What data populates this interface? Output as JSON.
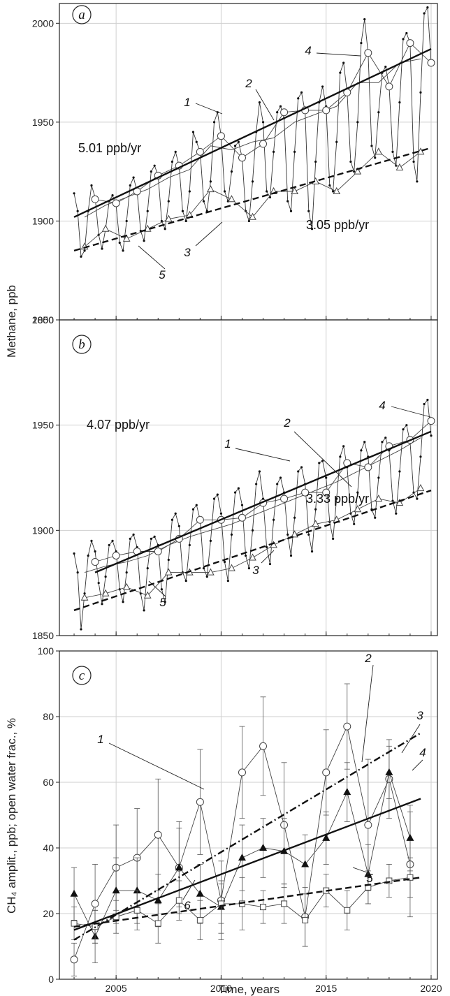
{
  "figure": {
    "ylabel_top": "Methane, ppb",
    "ylabel_c": "CH₄ amplit., ppb; open water frac., %",
    "xlabel": "Time, years",
    "x_ticks": [
      "2005",
      "2010",
      "2015",
      "2020"
    ]
  },
  "chart_data": [
    {
      "panel": "a",
      "type": "line",
      "xlim": [
        2002.3,
        2020.3
      ],
      "ylim": [
        1850,
        2010
      ],
      "y_ticks": [
        "1850",
        "1900",
        "1950",
        "2000"
      ],
      "grid": true,
      "annotations": {
        "rate_upper": "5.01 ppb/yr",
        "rate_lower": "3.05 ppb/yr",
        "labels": [
          "1",
          "2",
          "3",
          "4",
          "5"
        ]
      },
      "series": [
        {
          "key": "monthly",
          "x": [
            2003.0,
            2003.17,
            2003.33,
            2003.5,
            2003.67,
            2003.83,
            2004.0,
            2004.17,
            2004.33,
            2004.5,
            2004.67,
            2004.83,
            2005.0,
            2005.17,
            2005.33,
            2005.5,
            2005.67,
            2005.83,
            2006.0,
            2006.17,
            2006.33,
            2006.5,
            2006.67,
            2006.83,
            2007.0,
            2007.17,
            2007.33,
            2007.5,
            2007.67,
            2007.83,
            2008.0,
            2008.17,
            2008.33,
            2008.5,
            2008.67,
            2008.83,
            2009.0,
            2009.17,
            2009.33,
            2009.5,
            2009.67,
            2009.83,
            2010.0,
            2010.17,
            2010.33,
            2010.5,
            2010.67,
            2010.83,
            2011.0,
            2011.17,
            2011.33,
            2011.5,
            2011.67,
            2011.83,
            2012.0,
            2012.17,
            2012.33,
            2012.5,
            2012.67,
            2012.83,
            2013.0,
            2013.17,
            2013.33,
            2013.5,
            2013.67,
            2013.83,
            2014.0,
            2014.17,
            2014.33,
            2014.5,
            2014.67,
            2014.83,
            2015.0,
            2015.17,
            2015.33,
            2015.5,
            2015.67,
            2015.83,
            2016.0,
            2016.17,
            2016.33,
            2016.5,
            2016.67,
            2016.83,
            2017.0,
            2017.17,
            2017.33,
            2017.5,
            2017.67,
            2017.83,
            2018.0,
            2018.17,
            2018.33,
            2018.5,
            2018.67,
            2018.83,
            2019.0,
            2019.17,
            2019.33,
            2019.5,
            2019.67,
            2019.83,
            2020.0
          ],
          "y": [
            1914,
            1905,
            1882,
            1885,
            1905,
            1918,
            1912,
            1893,
            1886,
            1896,
            1910,
            1913,
            1908,
            1889,
            1885,
            1900,
            1918,
            1922,
            1915,
            1895,
            1890,
            1905,
            1925,
            1928,
            1923,
            1900,
            1896,
            1910,
            1930,
            1935,
            1928,
            1905,
            1900,
            1915,
            1945,
            1940,
            1935,
            1910,
            1905,
            1920,
            1950,
            1955,
            1943,
            1915,
            1910,
            1925,
            1938,
            1940,
            1932,
            1905,
            1900,
            1920,
            1945,
            1960,
            1950,
            1915,
            1912,
            1935,
            1955,
            1958,
            1952,
            1910,
            1905,
            1935,
            1962,
            1965,
            1955,
            1905,
            1896,
            1930,
            1960,
            1968,
            1958,
            1918,
            1915,
            1940,
            1975,
            1980,
            1965,
            1930,
            1925,
            1950,
            1990,
            2002,
            1985,
            1938,
            1932,
            1955,
            1975,
            1978,
            1968,
            1935,
            1928,
            1960,
            1992,
            1995,
            1990,
            1930,
            1920,
            1965,
            2005,
            2008,
            1980
          ]
        },
        {
          "key": "1",
          "marker": "none",
          "x": [
            2003.5,
            2004.5,
            2005.5,
            2006.5,
            2007.5,
            2008.5,
            2009.5,
            2010.5,
            2011.5,
            2012.5,
            2013.5,
            2014.5,
            2015.5,
            2016.5,
            2017.5,
            2018.5,
            2019.5
          ],
          "y": [
            1902,
            1908,
            1912,
            1916,
            1922,
            1926,
            1938,
            1936,
            1940,
            1942,
            1950,
            1954,
            1958,
            1970,
            1970,
            1980,
            1982
          ]
        },
        {
          "key": "4",
          "marker": "circle",
          "x": [
            2004,
            2005,
            2006,
            2007,
            2008,
            2009,
            2010,
            2011,
            2012,
            2013,
            2014,
            2015,
            2016,
            2017,
            2018,
            2019,
            2020
          ],
          "y": [
            1911,
            1909,
            1915,
            1923,
            1928,
            1935,
            1943,
            1932,
            1939,
            1955,
            1956,
            1956,
            1965,
            1985,
            1968,
            1990,
            1980
          ]
        },
        {
          "key": "5",
          "marker": "triangle",
          "x": [
            2003.5,
            2004.5,
            2005.5,
            2006.5,
            2007.5,
            2008.5,
            2009.5,
            2010.5,
            2011.5,
            2012.5,
            2013.5,
            2014.5,
            2015.5,
            2016.5,
            2017.5,
            2018.5,
            2019.5
          ],
          "y": [
            1887,
            1896,
            1891,
            1896,
            1901,
            1903,
            1916,
            1911,
            1902,
            1915,
            1915,
            1920,
            1915,
            1925,
            1935,
            1927,
            1935
          ]
        },
        {
          "key": "2",
          "style": "solid-thick",
          "x": [
            2003,
            2020
          ],
          "y": [
            1902,
            1987
          ]
        },
        {
          "key": "3",
          "style": "dashed-thick",
          "x": [
            2003,
            2020
          ],
          "y": [
            1885,
            1937
          ]
        }
      ]
    },
    {
      "panel": "b",
      "type": "line",
      "xlim": [
        2002.3,
        2020.3
      ],
      "ylim": [
        1850,
        2000
      ],
      "y_ticks": [
        "1850",
        "1900",
        "1950",
        "2000"
      ],
      "grid": true,
      "annotations": {
        "rate_upper": "4.07 ppb/yr",
        "rate_lower": "3.33 ppb/yr",
        "labels": [
          "1",
          "2",
          "3",
          "4",
          "5"
        ]
      },
      "series": [
        {
          "key": "monthly",
          "x": [
            2003.0,
            2003.17,
            2003.33,
            2003.5,
            2003.67,
            2003.83,
            2004.0,
            2004.17,
            2004.33,
            2004.5,
            2004.67,
            2004.83,
            2005.0,
            2005.17,
            2005.33,
            2005.5,
            2005.67,
            2005.83,
            2006.0,
            2006.17,
            2006.33,
            2006.5,
            2006.67,
            2006.83,
            2007.0,
            2007.17,
            2007.33,
            2007.5,
            2007.67,
            2007.83,
            2008.0,
            2008.17,
            2008.33,
            2008.5,
            2008.67,
            2008.83,
            2009.0,
            2009.17,
            2009.33,
            2009.5,
            2009.67,
            2009.83,
            2010.0,
            2010.17,
            2010.33,
            2010.5,
            2010.67,
            2010.83,
            2011.0,
            2011.17,
            2011.33,
            2011.5,
            2011.67,
            2011.83,
            2012.0,
            2012.17,
            2012.33,
            2012.5,
            2012.67,
            2012.83,
            2013.0,
            2013.17,
            2013.33,
            2013.5,
            2013.67,
            2013.83,
            2014.0,
            2014.17,
            2014.33,
            2014.5,
            2014.67,
            2014.83,
            2015.0,
            2015.17,
            2015.33,
            2015.5,
            2015.67,
            2015.83,
            2016.0,
            2016.17,
            2016.33,
            2016.5,
            2016.67,
            2016.83,
            2017.0,
            2017.17,
            2017.33,
            2017.5,
            2017.67,
            2017.83,
            2018.0,
            2018.17,
            2018.33,
            2018.5,
            2018.67,
            2018.83,
            2019.0,
            2019.17,
            2019.33,
            2019.5,
            2019.67,
            2019.83,
            2020.0
          ],
          "y": [
            1889,
            1880,
            1853,
            1870,
            1888,
            1895,
            1890,
            1875,
            1865,
            1878,
            1893,
            1895,
            1890,
            1872,
            1866,
            1880,
            1896,
            1898,
            1892,
            1870,
            1862,
            1882,
            1896,
            1897,
            1893,
            1872,
            1866,
            1886,
            1905,
            1908,
            1902,
            1880,
            1876,
            1893,
            1910,
            1912,
            1905,
            1882,
            1878,
            1895,
            1915,
            1917,
            1908,
            1885,
            1876,
            1898,
            1918,
            1920,
            1912,
            1888,
            1882,
            1900,
            1922,
            1928,
            1915,
            1892,
            1884,
            1905,
            1922,
            1925,
            1918,
            1898,
            1888,
            1906,
            1928,
            1930,
            1922,
            1898,
            1890,
            1910,
            1932,
            1933,
            1925,
            1904,
            1896,
            1915,
            1935,
            1940,
            1930,
            1908,
            1903,
            1918,
            1938,
            1942,
            1935,
            1910,
            1906,
            1925,
            1942,
            1944,
            1938,
            1914,
            1908,
            1928,
            1948,
            1950,
            1942,
            1918,
            1915,
            1935,
            1960,
            1962,
            1945
          ]
        },
        {
          "key": "1",
          "marker": "none",
          "x": [
            2003.5,
            2004.5,
            2005.5,
            2006.5,
            2007.5,
            2008.5,
            2009.5,
            2010.5,
            2011.5,
            2012.5,
            2013.5,
            2014.5,
            2015.5,
            2016.5,
            2017.5,
            2018.5,
            2019.5
          ],
          "y": [
            1880,
            1883,
            1885,
            1888,
            1893,
            1897,
            1900,
            1903,
            1907,
            1911,
            1915,
            1919,
            1923,
            1928,
            1933,
            1938,
            1944
          ]
        },
        {
          "key": "4",
          "marker": "circle",
          "x": [
            2004,
            2005,
            2006,
            2007,
            2008,
            2009,
            2010,
            2011,
            2012,
            2013,
            2014,
            2015,
            2016,
            2017,
            2018,
            2019,
            2020
          ],
          "y": [
            1885,
            1888,
            1890,
            1890,
            1896,
            1905,
            1905,
            1906,
            1913,
            1915,
            1918,
            1918,
            1932,
            1930,
            1940,
            1943,
            1952
          ]
        },
        {
          "key": "5",
          "marker": "triangle",
          "x": [
            2003.5,
            2004.5,
            2005.5,
            2006.5,
            2007.5,
            2008.5,
            2009.5,
            2010.5,
            2011.5,
            2012.5,
            2013.5,
            2014.5,
            2015.5,
            2016.5,
            2017.5,
            2018.5,
            2019.5
          ],
          "y": [
            1868,
            1870,
            1873,
            1869,
            1880,
            1880,
            1880,
            1882,
            1887,
            1893,
            1898,
            1903,
            1905,
            1910,
            1915,
            1913,
            1920
          ]
        },
        {
          "key": "2",
          "style": "solid-thick",
          "x": [
            2004,
            2020
          ],
          "y": [
            1880,
            1947
          ]
        },
        {
          "key": "3",
          "style": "dashed-thick",
          "x": [
            2003,
            2020
          ],
          "y": [
            1862,
            1919
          ]
        }
      ]
    },
    {
      "panel": "c",
      "type": "line",
      "xlim": [
        2002.3,
        2020.3
      ],
      "ylim": [
        0,
        100
      ],
      "y_ticks": [
        "0",
        "20",
        "40",
        "60",
        "80",
        "100"
      ],
      "x_ticks": [
        "2005",
        "2010",
        "2015",
        "2020"
      ],
      "grid": true,
      "annotations": {
        "labels": [
          "1",
          "2",
          "3",
          "4",
          "5",
          "6"
        ]
      },
      "series": [
        {
          "key": "1",
          "marker": "circle",
          "x": [
            2003,
            2004,
            2005,
            2006,
            2007,
            2008,
            2009,
            2010,
            2011,
            2012,
            2013,
            2014,
            2015,
            2016,
            2017,
            2018,
            2019
          ],
          "y": [
            6,
            23,
            34,
            37,
            44,
            34,
            54,
            24,
            63,
            71,
            47,
            19,
            63,
            77,
            47,
            61,
            35
          ],
          "err": [
            5,
            12,
            13,
            15,
            17,
            14,
            16,
            12,
            14,
            15,
            19,
            9,
            13,
            13,
            20,
            12,
            16
          ]
        },
        {
          "key": "6",
          "marker": "triangle-filled",
          "x": [
            2003,
            2004,
            2005,
            2006,
            2007,
            2008,
            2009,
            2010,
            2011,
            2012,
            2013,
            2014,
            2015,
            2016,
            2017,
            2018,
            2019
          ],
          "y": [
            26,
            13,
            27,
            27,
            24,
            34,
            26,
            22,
            37,
            40,
            39,
            35,
            43,
            57,
            32,
            63,
            43
          ],
          "err": [
            8,
            8,
            10,
            10,
            8,
            12,
            9,
            8,
            10,
            9,
            10,
            9,
            8,
            9,
            9,
            8,
            10
          ]
        },
        {
          "key": "5",
          "marker": "square",
          "x": [
            2003,
            2004,
            2005,
            2006,
            2007,
            2008,
            2009,
            2010,
            2011,
            2012,
            2013,
            2014,
            2015,
            2016,
            2017,
            2018,
            2019
          ],
          "y": [
            17,
            16,
            19,
            21,
            17,
            24,
            18,
            23,
            23,
            22,
            23,
            18,
            27,
            21,
            28,
            30,
            31
          ],
          "err": [
            5,
            5,
            5,
            6,
            6,
            6,
            6,
            6,
            8,
            5,
            6,
            8,
            5,
            6,
            5,
            5,
            6
          ]
        },
        {
          "key": "2",
          "style": "dashdot-thick",
          "x": [
            2003,
            2019.5
          ],
          "y": [
            12,
            75
          ]
        },
        {
          "key": "4",
          "style": "solid-thick",
          "x": [
            2003,
            2019.5
          ],
          "y": [
            15,
            55
          ]
        },
        {
          "key": "3",
          "style": "dashed-thick",
          "x": [
            2003,
            2019.5
          ],
          "y": [
            16,
            31
          ]
        }
      ]
    }
  ]
}
